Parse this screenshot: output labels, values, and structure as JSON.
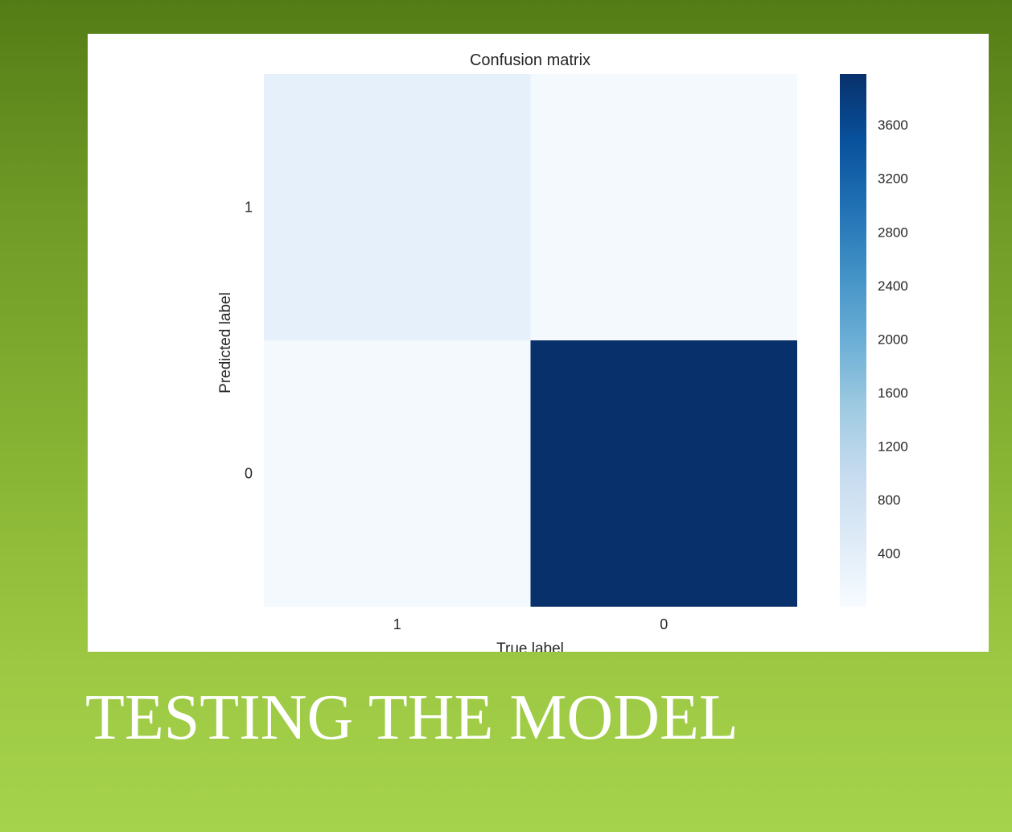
{
  "slide": {
    "title": "TESTING THE MODEL"
  },
  "chart_data": {
    "type": "heatmap",
    "title": "Confusion matrix",
    "xlabel": "True label",
    "ylabel": "Predicted label",
    "x_categories": [
      "1",
      "0"
    ],
    "y_categories": [
      "1",
      "0"
    ],
    "matrix": [
      [
        330,
        60
      ],
      [
        50,
        3980
      ]
    ],
    "colormap": "Blues",
    "color_low": "#f7fbff",
    "color_high": "#08306b",
    "colorbar": {
      "min": 0,
      "max": 3980,
      "ticks": [
        400,
        800,
        1200,
        1600,
        2000,
        2400,
        2800,
        3200,
        3600
      ]
    },
    "grid": false
  }
}
